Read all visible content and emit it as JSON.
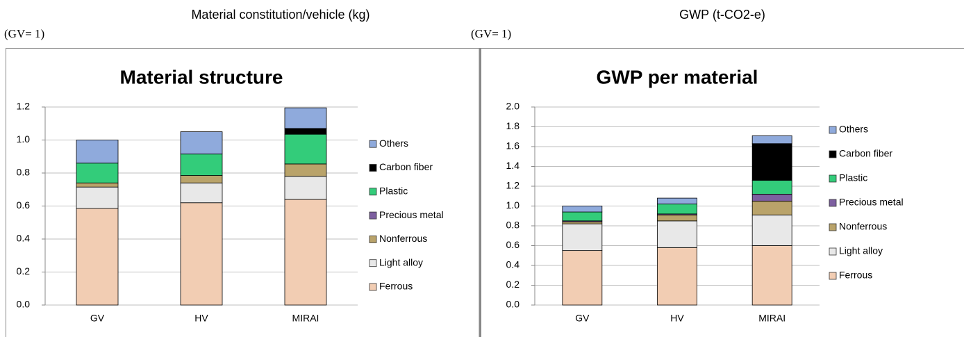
{
  "header": [
    {
      "title": "Material constitution/vehicle (kg)",
      "note": "(GV= 1)"
    },
    {
      "title": "GWP (t-CO2-e)",
      "note": "(GV= 1)"
    }
  ],
  "chart_data": [
    {
      "type": "bar",
      "stacked": true,
      "title": "Material structure",
      "categories": [
        "GV",
        "HV",
        "MIRAI"
      ],
      "series": [
        {
          "name": "Ferrous",
          "color": "#f2cdb3",
          "values": [
            0.585,
            0.62,
            0.64
          ]
        },
        {
          "name": "Light alloy",
          "color": "#e8e8e8",
          "values": [
            0.13,
            0.12,
            0.14
          ]
        },
        {
          "name": "Nonferrous",
          "color": "#b9a36a",
          "values": [
            0.025,
            0.045,
            0.075
          ]
        },
        {
          "name": "Precious metal",
          "color": "#7d5fa0",
          "values": [
            0,
            0,
            0
          ]
        },
        {
          "name": "Plastic",
          "color": "#33cc7a",
          "values": [
            0.12,
            0.13,
            0.18
          ]
        },
        {
          "name": "Carbon fiber",
          "color": "#000000",
          "values": [
            0,
            0,
            0.035
          ]
        },
        {
          "name": "Others",
          "color": "#8faadc",
          "values": [
            0.14,
            0.135,
            0.125
          ]
        }
      ],
      "ylim": [
        0,
        1.2
      ],
      "yticks": [
        {
          "value": 0,
          "label": "0.0"
        },
        {
          "value": 0.2,
          "label": "0.2"
        },
        {
          "value": 0.4,
          "label": "0.4"
        },
        {
          "value": 0.6,
          "label": "0.6"
        },
        {
          "value": 0.8,
          "label": "0.8"
        },
        {
          "value": 1,
          "label": "1.0"
        },
        {
          "value": 1.2,
          "label": "1.2"
        }
      ],
      "grid": true
    },
    {
      "type": "bar",
      "stacked": true,
      "title": "GWP per material",
      "categories": [
        "GV",
        "HV",
        "MIRAI"
      ],
      "series": [
        {
          "name": "Ferrous",
          "color": "#f2cdb3",
          "values": [
            0.55,
            0.58,
            0.6
          ]
        },
        {
          "name": "Light alloy",
          "color": "#e8e8e8",
          "values": [
            0.27,
            0.27,
            0.31
          ]
        },
        {
          "name": "Nonferrous",
          "color": "#b9a36a",
          "values": [
            0.02,
            0.06,
            0.14
          ]
        },
        {
          "name": "Precious metal",
          "color": "#7d5fa0",
          "values": [
            0.01,
            0.01,
            0.07
          ]
        },
        {
          "name": "Plastic",
          "color": "#33cc7a",
          "values": [
            0.09,
            0.1,
            0.14
          ]
        },
        {
          "name": "Carbon fiber",
          "color": "#000000",
          "values": [
            0,
            0,
            0.37
          ]
        },
        {
          "name": "Others",
          "color": "#8faadc",
          "values": [
            0.06,
            0.06,
            0.08
          ]
        }
      ],
      "ylim": [
        0,
        2
      ],
      "yticks": [
        {
          "value": 0,
          "label": "0.0"
        },
        {
          "value": 0.2,
          "label": "0.2"
        },
        {
          "value": 0.4,
          "label": "0.4"
        },
        {
          "value": 0.6,
          "label": "0.6"
        },
        {
          "value": 0.8,
          "label": "0.8"
        },
        {
          "value": 1,
          "label": "1.0"
        },
        {
          "value": 1.2,
          "label": "1.2"
        },
        {
          "value": 1.4,
          "label": "1.4"
        },
        {
          "value": 1.6,
          "label": "1.6"
        },
        {
          "value": 1.8,
          "label": "1.8"
        },
        {
          "value": 2,
          "label": "2.0"
        }
      ],
      "grid": true
    }
  ]
}
